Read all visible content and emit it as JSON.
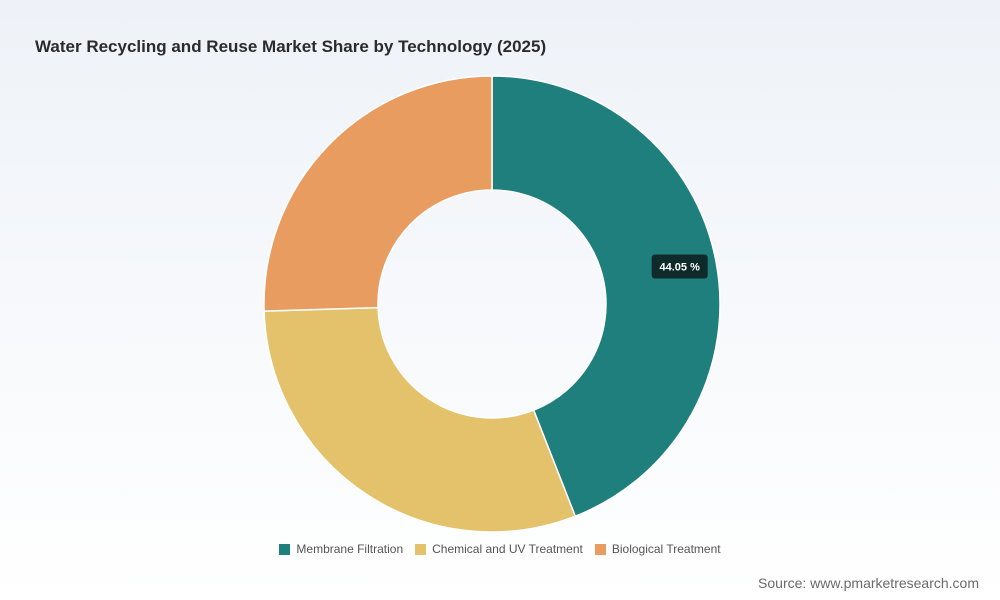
{
  "chart_data": {
    "type": "pie",
    "title": "Water Recycling and Reuse Market Share by Technology (2025)",
    "categories": [
      "Membrane Filtration",
      "Chemical and UV Treatment",
      "Biological Treatment"
    ],
    "values": [
      44.05,
      30.45,
      25.5
    ],
    "unit": "%",
    "colors": [
      "#1f7f7c",
      "#e3c26b",
      "#e89c5f"
    ],
    "data_labels": [
      {
        "category": "Membrane Filtration",
        "text": "44.05 %"
      }
    ],
    "legend_position": "bottom",
    "donut": true
  },
  "source": "Source: www.pmarketresearch.com"
}
